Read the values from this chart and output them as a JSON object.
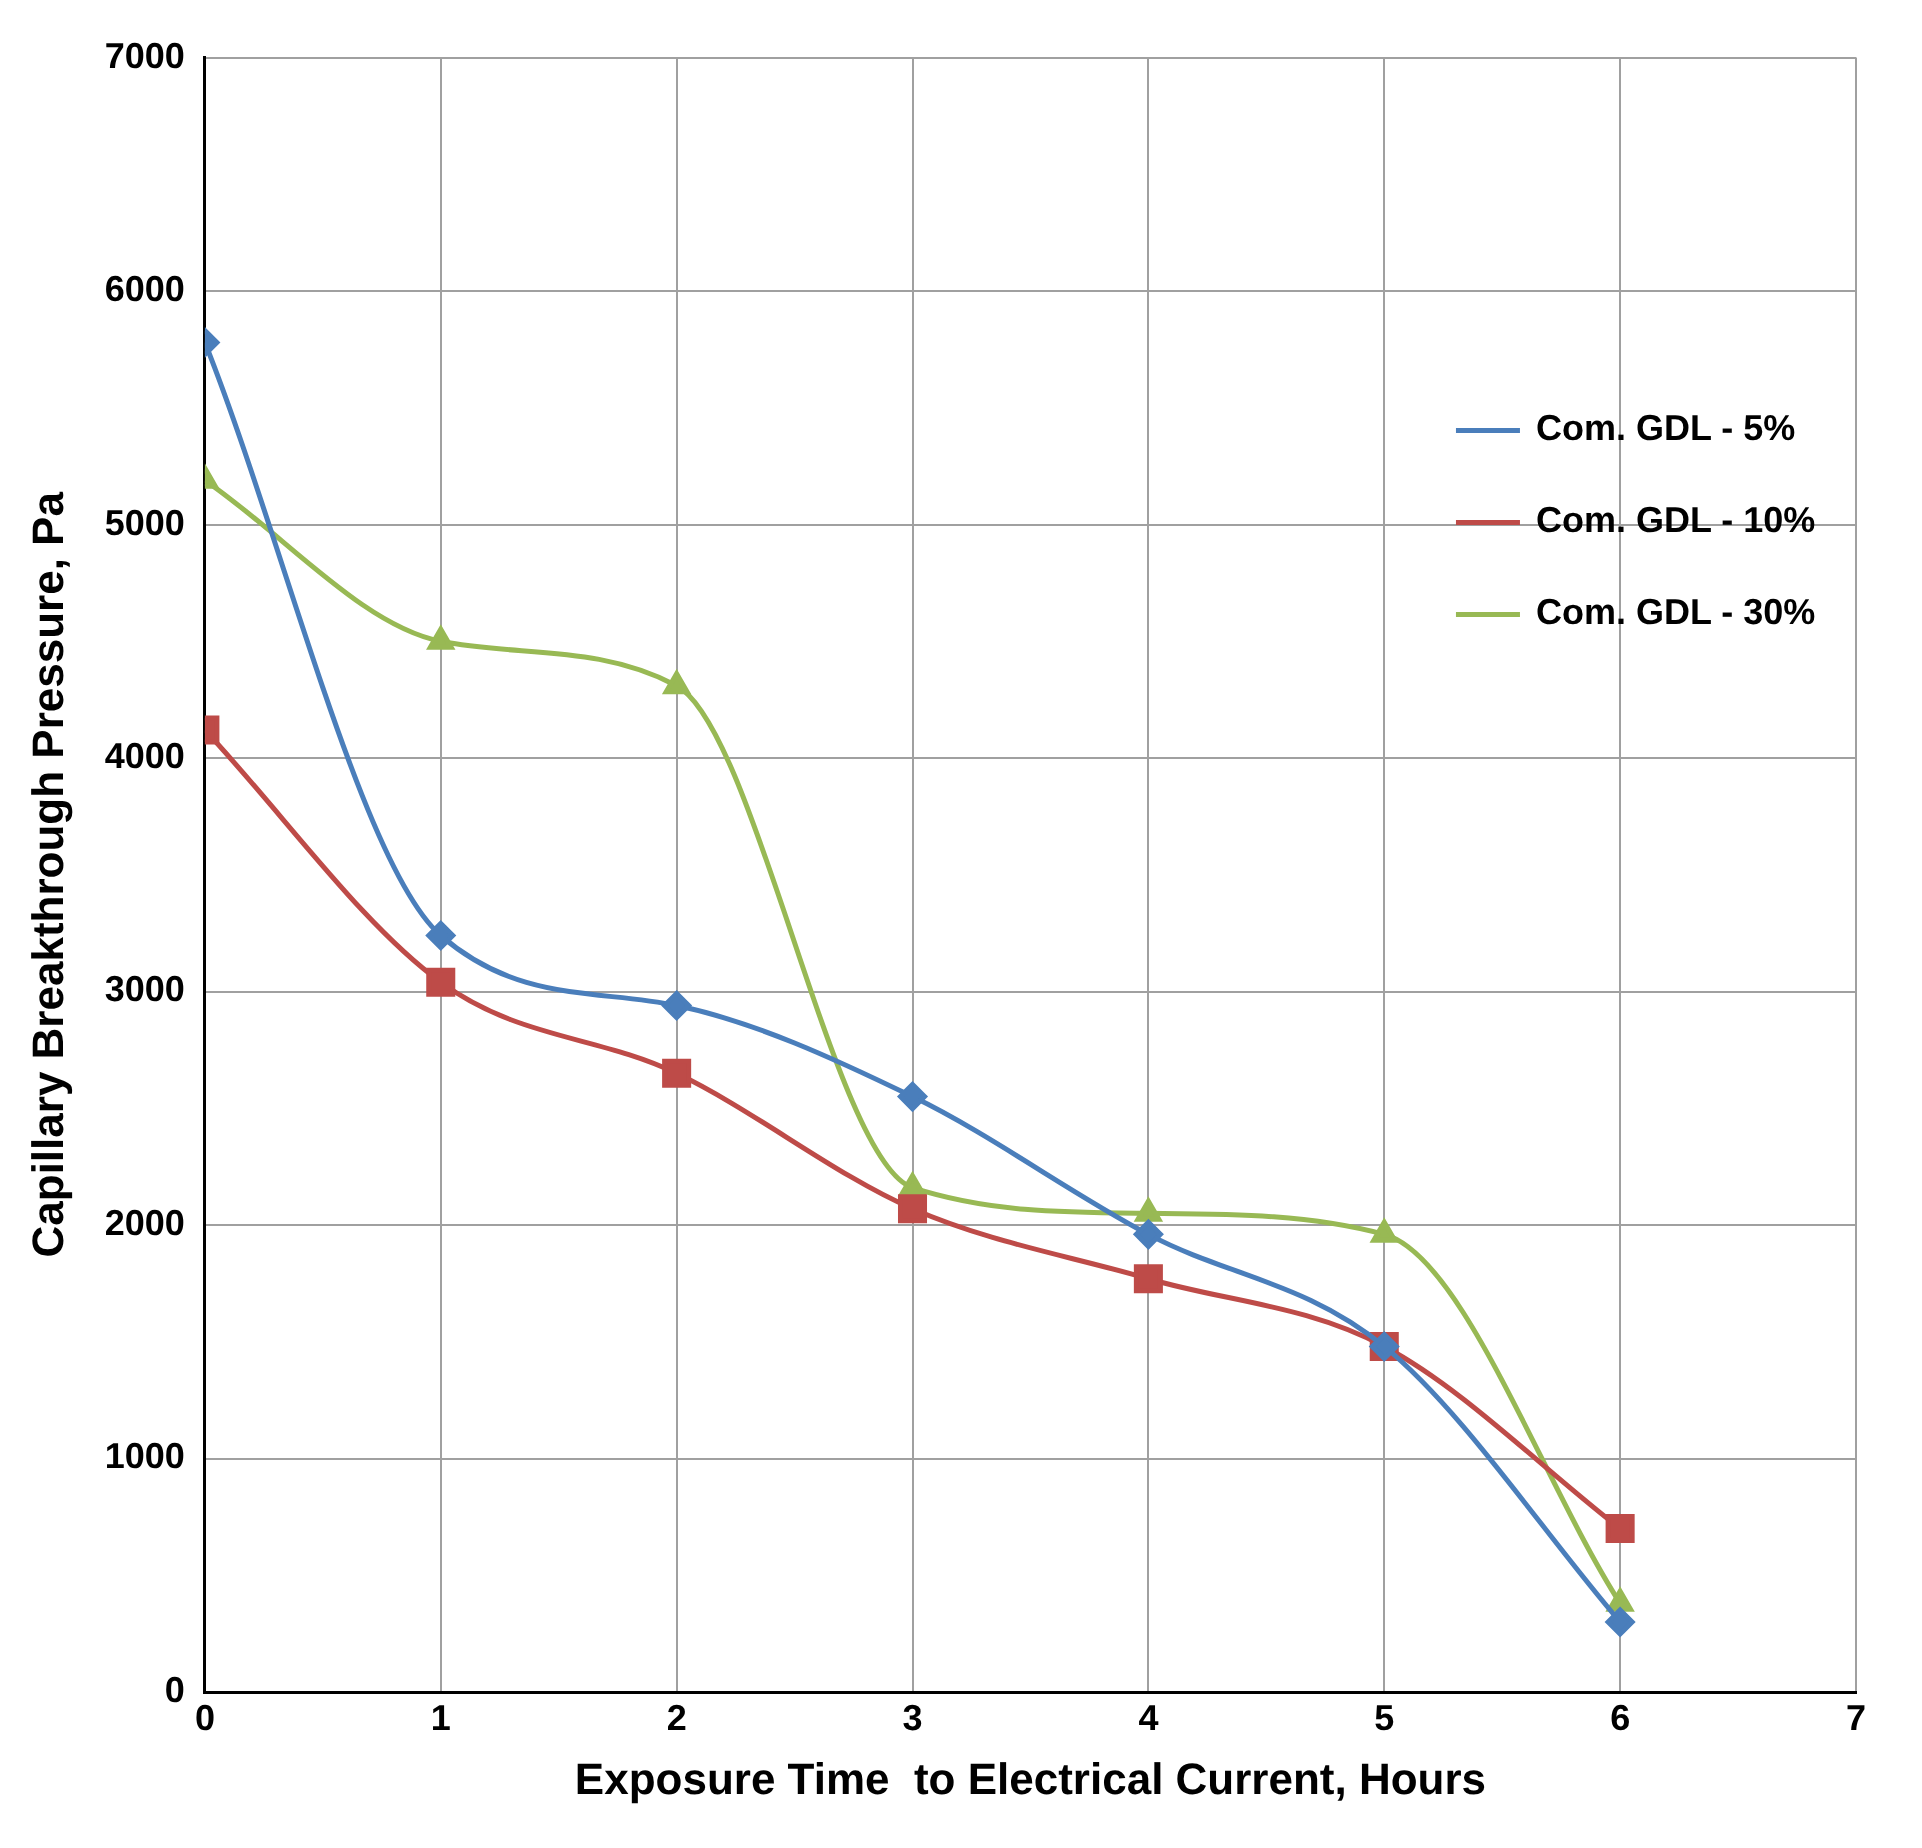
{
  "chart_data": {
    "type": "line",
    "xlabel": "Exposure Time  to Electrical Current, Hours",
    "ylabel": "Capillary Breakthrough Pressure, Pa",
    "x": [
      0,
      1,
      2,
      3,
      4,
      5,
      6
    ],
    "series": [
      {
        "name": "Com. GDL - 5%",
        "color": "#4a7ebb",
        "marker": "diamond",
        "values": [
          5780,
          3240,
          2940,
          2550,
          1960,
          1480,
          300
        ]
      },
      {
        "name": "Com. GDL - 10%",
        "color": "#be4b48",
        "marker": "square",
        "values": [
          4120,
          3040,
          2650,
          2070,
          1770,
          1480,
          700
        ]
      },
      {
        "name": "Com. GDL - 30%",
        "color": "#98b954",
        "marker": "triangle",
        "values": [
          5190,
          4500,
          4310,
          2160,
          2050,
          1960,
          380
        ]
      }
    ],
    "xlim": [
      0,
      7
    ],
    "xticks": [
      0,
      1,
      2,
      3,
      4,
      5,
      6,
      7
    ],
    "ylim": [
      0,
      7000
    ],
    "yticks": [
      0,
      1000,
      2000,
      3000,
      4000,
      5000,
      6000,
      7000
    ],
    "grid": true,
    "legend": "top right",
    "line_style": "solid"
  }
}
